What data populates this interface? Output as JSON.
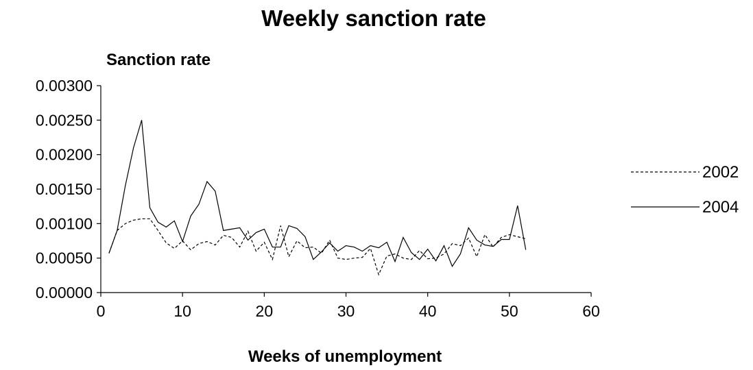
{
  "chart_data": {
    "type": "line",
    "title": "Weekly sanction rate",
    "ylabel": "Sanction rate",
    "xlabel": "Weeks of unemployment",
    "xlim": [
      0,
      60
    ],
    "ylim": [
      0,
      0.003
    ],
    "xticks": [
      "0",
      "10",
      "20",
      "30",
      "40",
      "50",
      "60"
    ],
    "yticks": [
      "0.00000",
      "0.00050",
      "0.00100",
      "0.00150",
      "0.00200",
      "0.00250",
      "0.00300"
    ],
    "grid": false,
    "legend_position": "right",
    "x": [
      1,
      2,
      3,
      4,
      5,
      6,
      7,
      8,
      9,
      10,
      11,
      12,
      13,
      14,
      15,
      16,
      17,
      18,
      19,
      20,
      21,
      22,
      23,
      24,
      25,
      26,
      27,
      28,
      29,
      30,
      31,
      32,
      33,
      34,
      35,
      36,
      37,
      38,
      39,
      40,
      41,
      42,
      43,
      44,
      45,
      46,
      47,
      48,
      49,
      50,
      51,
      52
    ],
    "series": [
      {
        "name": "2002",
        "line_style": "dashed",
        "values": [
          0.00057,
          0.0009,
          0.001,
          0.00105,
          0.00107,
          0.00107,
          0.0009,
          0.00072,
          0.00064,
          0.00075,
          0.00062,
          0.00071,
          0.00074,
          0.00069,
          0.00083,
          0.0008,
          0.00066,
          0.00089,
          0.0006,
          0.00073,
          0.00048,
          0.00097,
          0.00052,
          0.00075,
          0.00065,
          0.00066,
          0.00057,
          0.00076,
          0.0005,
          0.00048,
          0.0005,
          0.00051,
          0.00064,
          0.00026,
          0.00053,
          0.00056,
          0.0005,
          0.00048,
          0.00061,
          0.00049,
          0.0005,
          0.00056,
          0.00071,
          0.00068,
          0.00079,
          0.00052,
          0.00084,
          0.00066,
          0.0008,
          0.00084,
          0.00081,
          0.00078
        ]
      },
      {
        "name": "2004",
        "line_style": "solid",
        "values": [
          0.00057,
          0.0009,
          0.00155,
          0.0021,
          0.0025,
          0.00123,
          0.00102,
          0.00095,
          0.00104,
          0.00074,
          0.00111,
          0.00128,
          0.00161,
          0.00147,
          0.0009,
          0.00092,
          0.00094,
          0.00076,
          0.00087,
          0.00092,
          0.00066,
          0.00066,
          0.00097,
          0.00093,
          0.00081,
          0.00048,
          0.00059,
          0.00072,
          0.0006,
          0.00068,
          0.00066,
          0.0006,
          0.00068,
          0.00065,
          0.00073,
          0.00045,
          0.0008,
          0.00058,
          0.00048,
          0.00063,
          0.00046,
          0.00068,
          0.00038,
          0.00056,
          0.00094,
          0.00076,
          0.00069,
          0.00067,
          0.00077,
          0.00077,
          0.00126,
          0.00062
        ]
      }
    ]
  }
}
